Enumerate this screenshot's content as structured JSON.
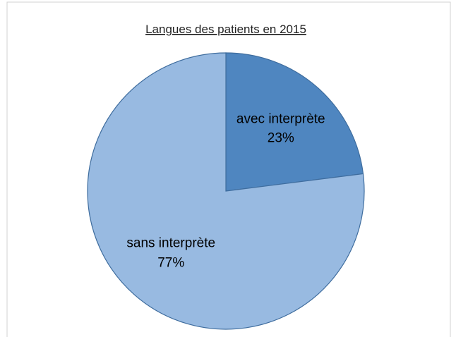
{
  "chart_data": {
    "type": "pie",
    "title": "Langues des patients en 2015",
    "categories": [
      "avec interprète",
      "sans interprète"
    ],
    "values": [
      23,
      77
    ],
    "value_labels": [
      "23%",
      "77%"
    ],
    "colors": [
      "#4f86c0",
      "#98bae1"
    ]
  }
}
